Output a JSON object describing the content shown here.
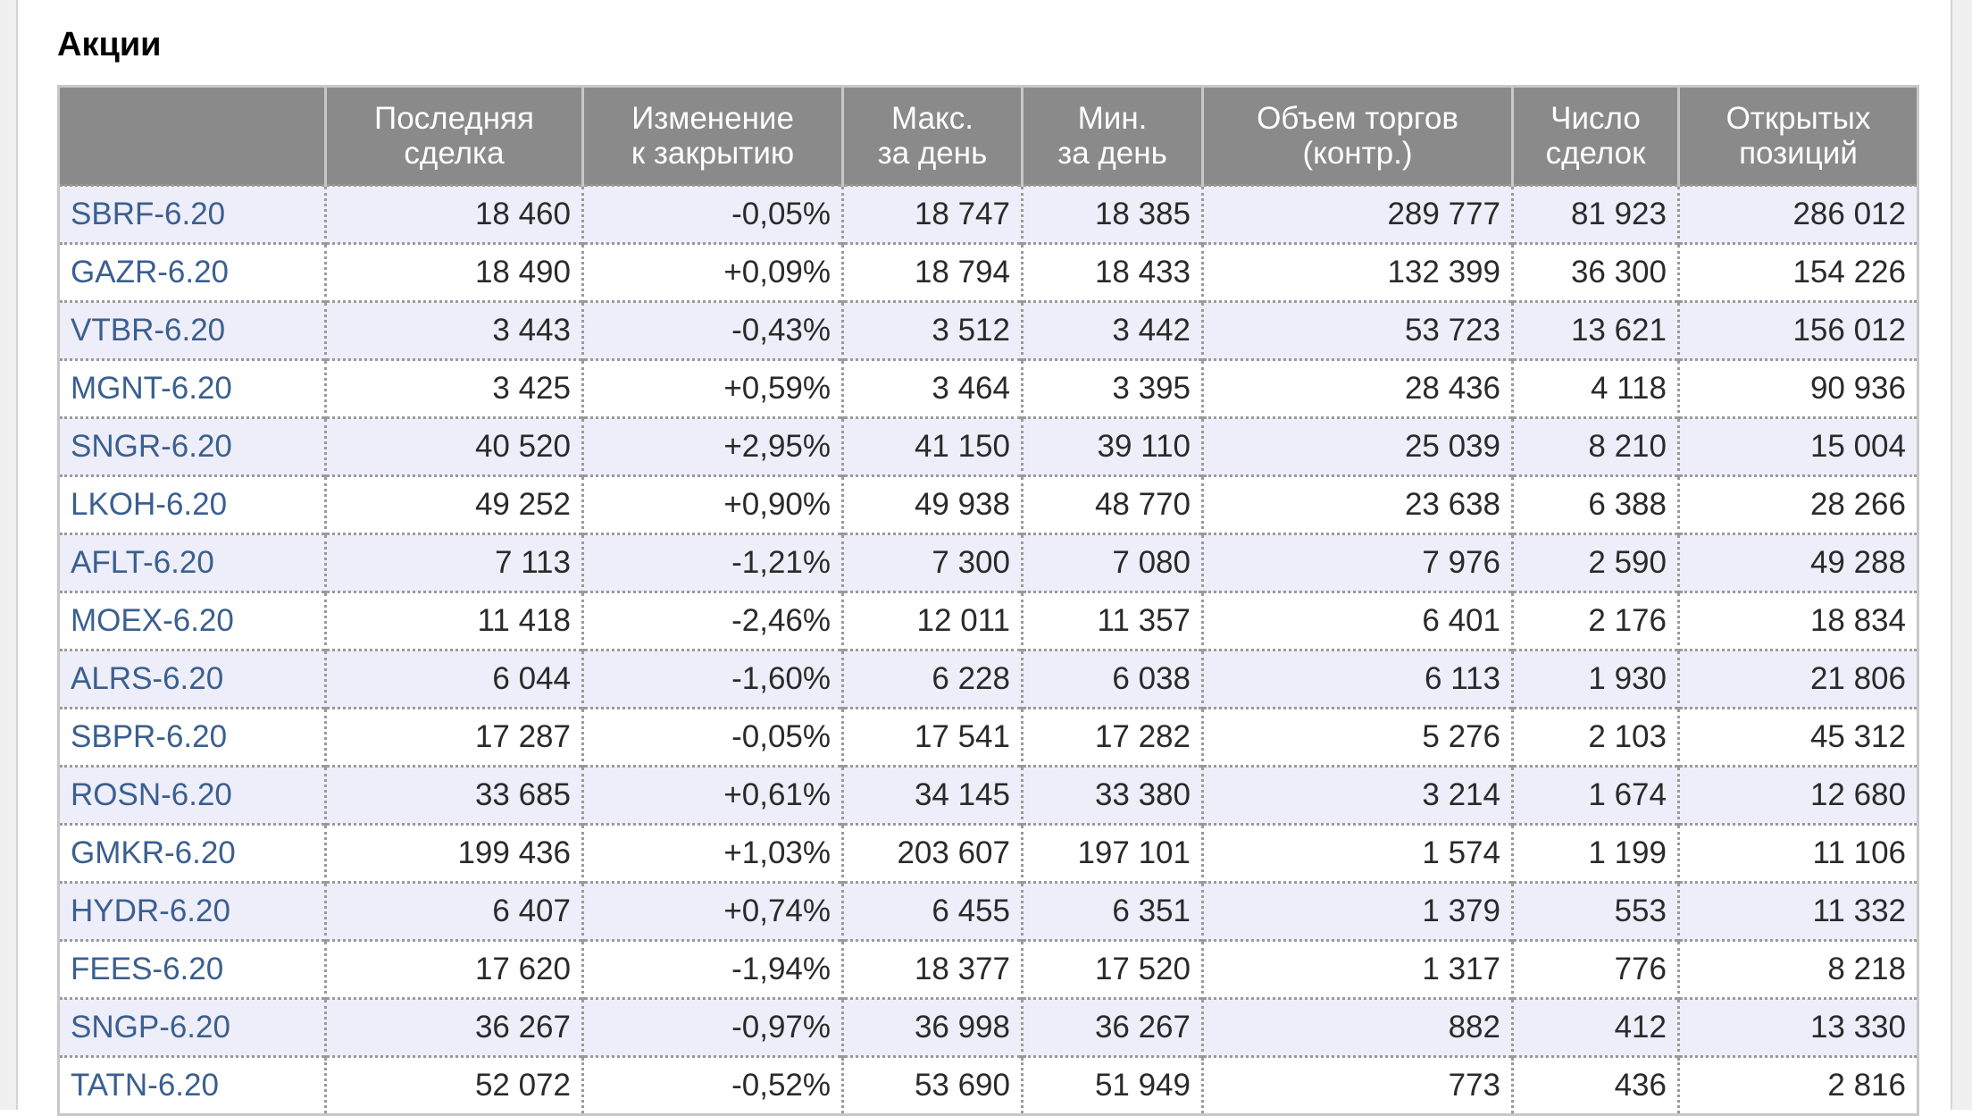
{
  "section_title": "Акции",
  "colors": {
    "header_bg": "#8a8a8a",
    "row_alt_bg": "#eeeefa",
    "link": "#3a5f90",
    "negative": "#e02020",
    "positive": "#2a8a2a"
  },
  "table": {
    "headers": [
      [
        "",
        ""
      ],
      [
        "Последняя",
        "сделка"
      ],
      [
        "Изменение",
        "к закрытию"
      ],
      [
        "Макс.",
        "за день"
      ],
      [
        "Мин.",
        "за день"
      ],
      [
        "Объем торгов",
        "(контр.)"
      ],
      [
        "Число",
        "сделок"
      ],
      [
        "Открытых",
        "позиций"
      ]
    ],
    "rows": [
      {
        "ticker": "SBRF-6.20",
        "last": "18 460",
        "change": "-0,05%",
        "dir": "neg",
        "high": "18 747",
        "low": "18 385",
        "volume": "289 777",
        "trades": "81 923",
        "open_interest": "286 012"
      },
      {
        "ticker": "GAZR-6.20",
        "last": "18 490",
        "change": "+0,09%",
        "dir": "pos",
        "high": "18 794",
        "low": "18 433",
        "volume": "132 399",
        "trades": "36 300",
        "open_interest": "154 226"
      },
      {
        "ticker": "VTBR-6.20",
        "last": "3 443",
        "change": "-0,43%",
        "dir": "neg",
        "high": "3 512",
        "low": "3 442",
        "volume": "53 723",
        "trades": "13 621",
        "open_interest": "156 012"
      },
      {
        "ticker": "MGNT-6.20",
        "last": "3 425",
        "change": "+0,59%",
        "dir": "pos",
        "high": "3 464",
        "low": "3 395",
        "volume": "28 436",
        "trades": "4 118",
        "open_interest": "90 936"
      },
      {
        "ticker": "SNGR-6.20",
        "last": "40 520",
        "change": "+2,95%",
        "dir": "pos",
        "high": "41 150",
        "low": "39 110",
        "volume": "25 039",
        "trades": "8 210",
        "open_interest": "15 004"
      },
      {
        "ticker": "LKOH-6.20",
        "last": "49 252",
        "change": "+0,90%",
        "dir": "pos",
        "high": "49 938",
        "low": "48 770",
        "volume": "23 638",
        "trades": "6 388",
        "open_interest": "28 266"
      },
      {
        "ticker": "AFLT-6.20",
        "last": "7 113",
        "change": "-1,21%",
        "dir": "neg",
        "high": "7 300",
        "low": "7 080",
        "volume": "7 976",
        "trades": "2 590",
        "open_interest": "49 288"
      },
      {
        "ticker": "MOEX-6.20",
        "last": "11 418",
        "change": "-2,46%",
        "dir": "neg",
        "high": "12 011",
        "low": "11 357",
        "volume": "6 401",
        "trades": "2 176",
        "open_interest": "18 834"
      },
      {
        "ticker": "ALRS-6.20",
        "last": "6 044",
        "change": "-1,60%",
        "dir": "neg",
        "high": "6 228",
        "low": "6 038",
        "volume": "6 113",
        "trades": "1 930",
        "open_interest": "21 806"
      },
      {
        "ticker": "SBPR-6.20",
        "last": "17 287",
        "change": "-0,05%",
        "dir": "neg",
        "high": "17 541",
        "low": "17 282",
        "volume": "5 276",
        "trades": "2 103",
        "open_interest": "45 312"
      },
      {
        "ticker": "ROSN-6.20",
        "last": "33 685",
        "change": "+0,61%",
        "dir": "pos",
        "high": "34 145",
        "low": "33 380",
        "volume": "3 214",
        "trades": "1 674",
        "open_interest": "12 680"
      },
      {
        "ticker": "GMKR-6.20",
        "last": "199 436",
        "change": "+1,03%",
        "dir": "pos",
        "high": "203 607",
        "low": "197 101",
        "volume": "1 574",
        "trades": "1 199",
        "open_interest": "11 106"
      },
      {
        "ticker": "HYDR-6.20",
        "last": "6 407",
        "change": "+0,74%",
        "dir": "pos",
        "high": "6 455",
        "low": "6 351",
        "volume": "1 379",
        "trades": "553",
        "open_interest": "11 332"
      },
      {
        "ticker": "FEES-6.20",
        "last": "17 620",
        "change": "-1,94%",
        "dir": "neg",
        "high": "18 377",
        "low": "17 520",
        "volume": "1 317",
        "trades": "776",
        "open_interest": "8 218"
      },
      {
        "ticker": "SNGP-6.20",
        "last": "36 267",
        "change": "-0,97%",
        "dir": "neg",
        "high": "36 998",
        "low": "36 267",
        "volume": "882",
        "trades": "412",
        "open_interest": "13 330"
      },
      {
        "ticker": "TATN-6.20",
        "last": "52 072",
        "change": "-0,52%",
        "dir": "neg",
        "high": "53 690",
        "low": "51 949",
        "volume": "773",
        "trades": "436",
        "open_interest": "2 816"
      }
    ]
  }
}
